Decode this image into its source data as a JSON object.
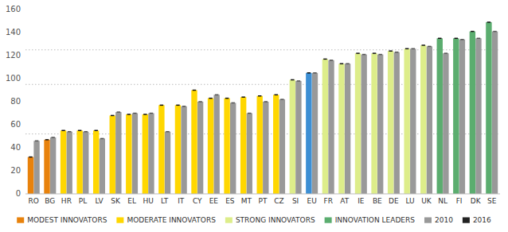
{
  "chart_data": {
    "type": "bar",
    "categories": [
      "RO",
      "BG",
      "HR",
      "PL",
      "LV",
      "SK",
      "EL",
      "HU",
      "LT",
      "IT",
      "CY",
      "EE",
      "ES",
      "MT",
      "PT",
      "CZ",
      "SI",
      "EU",
      "FR",
      "AT",
      "IE",
      "BE",
      "DE",
      "LU",
      "UK",
      "NL",
      "FI",
      "DK",
      "SE"
    ],
    "series": [
      {
        "name": "2010",
        "color": "#999999",
        "values": [
          46,
          49,
          54,
          54,
          48,
          71,
          70,
          70,
          54,
          76,
          80,
          86,
          79,
          70,
          80,
          82,
          98,
          105,
          116,
          113,
          121,
          121,
          123,
          126,
          128,
          122,
          134,
          135,
          141
        ]
      },
      {
        "name": "2016",
        "color": "#222222",
        "colors": [
          "#E8820C",
          "#E8820C",
          "#FFD700",
          "#FFD700",
          "#FFD700",
          "#FFD700",
          "#FFD700",
          "#FFD700",
          "#FFD700",
          "#FFD700",
          "#FFD700",
          "#FFD700",
          "#FFD700",
          "#FFD700",
          "#FFD700",
          "#FFD700",
          "#DDED8A",
          "#3D8FD4",
          "#DDED8A",
          "#DDED8A",
          "#DDED8A",
          "#DDED8A",
          "#DDED8A",
          "#DDED8A",
          "#DDED8A",
          "#5BAD6F",
          "#5BAD6F",
          "#5BAD6F",
          "#5BAD6F"
        ],
        "values": [
          32,
          47,
          55,
          55,
          55,
          68,
          69,
          69,
          77,
          77,
          90,
          83,
          83,
          84,
          85,
          86,
          99,
          105,
          117,
          113,
          122,
          122,
          124,
          126,
          129,
          135,
          135,
          141,
          149
        ]
      }
    ],
    "color_groups": [
      {
        "label": "MODEST INNOVATORS",
        "color": "#E8820C"
      },
      {
        "label": "MODERATE INNOVATORS",
        "color": "#FFD700"
      },
      {
        "label": "STRONG INNOVATORS",
        "color": "#DDED8A"
      },
      {
        "label": "INNOVATION LEADERS",
        "color": "#5BAD6F"
      }
    ],
    "reference_lines": [
      52,
      95,
      125
    ],
    "ylim": [
      0,
      160
    ],
    "yticks": [
      0,
      20,
      40,
      60,
      80,
      100,
      120,
      140,
      160
    ],
    "grid": false,
    "legend": "bottom"
  }
}
